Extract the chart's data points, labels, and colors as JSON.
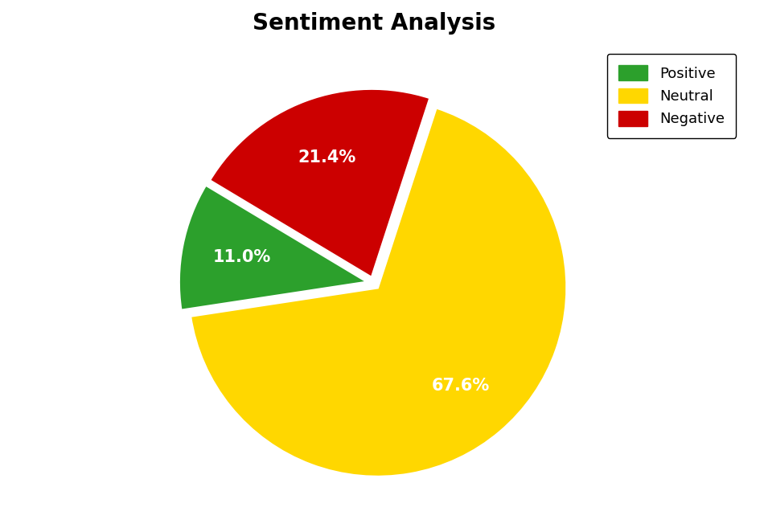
{
  "title": "Sentiment Analysis",
  "wedge_labels": [
    "Neutral",
    "Positive",
    "Negative"
  ],
  "wedge_values": [
    67.6,
    11.0,
    21.4
  ],
  "wedge_colors": [
    "#FFD700",
    "#2CA02C",
    "#CC0000"
  ],
  "wedge_explode": [
    0.03,
    0.03,
    0.03
  ],
  "startangle": 72,
  "counterclock": false,
  "pctdistance": 0.68,
  "legend_labels": [
    "Positive",
    "Neutral",
    "Negative"
  ],
  "legend_colors": [
    "#2CA02C",
    "#FFD700",
    "#CC0000"
  ],
  "title_fontsize": 20,
  "label_fontsize": 15,
  "legend_fontsize": 13,
  "background_color": "#ffffff",
  "edge_color": "white",
  "edge_linewidth": 2.5
}
